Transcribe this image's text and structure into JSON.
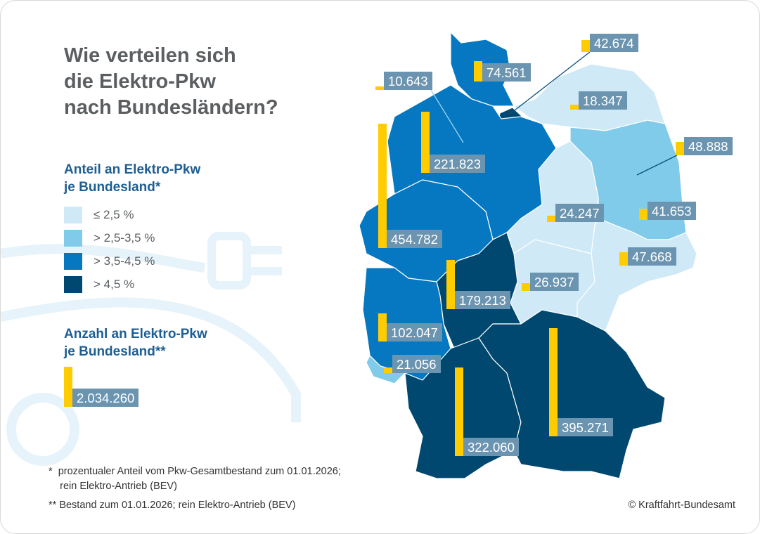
{
  "title": "Wie verteilen sich\ndie Elektro-Pkw\nnach Bundesländern?",
  "legend_share": {
    "heading": "Anteil an Elektro-Pkw\nje Bundesland*",
    "items": [
      {
        "label": "≤ 2,5 %",
        "color": "#cfe9f6"
      },
      {
        "label": "> 2,5-3,5 %",
        "color": "#80cbea"
      },
      {
        "label": "> 3,5-4,5 %",
        "color": "#0578c1"
      },
      {
        "label": "> 4,5 %",
        "color": "#00486f"
      }
    ]
  },
  "legend_count": {
    "heading": "Anzahl an Elektro-Pkw\nje Bundesland**",
    "example_value": "2.034.260"
  },
  "footnotes": {
    "f1": "*  prozentualer Anteil vom Pkw-Gesamtbestand zum 01.01.2026;\n    rein Elektro-Antrieb (BEV)",
    "f2": "** Bestand zum 01.01.2026; rein Elektro-Antrieb (BEV)"
  },
  "copyright": "© Kraftfahrt-Bundesamt",
  "colors": {
    "bar": "#ffcc00",
    "label_bg": "#6b94b0"
  },
  "chart_data": {
    "type": "choropleth-bar-map",
    "title": "Wie verteilen sich die Elektro-Pkw nach Bundesländern?",
    "states": [
      {
        "id": "SH",
        "name": "Schleswig-Holstein",
        "count": 74561,
        "label": "74.561",
        "share_class": "> 3,5-4,5 %"
      },
      {
        "id": "HH",
        "name": "Hamburg",
        "count": 42674,
        "label": "42.674",
        "share_class": "> 4,5 %"
      },
      {
        "id": "HB",
        "name": "Bremen",
        "count": 10643,
        "label": "10.643",
        "share_class": "> 3,5-4,5 %"
      },
      {
        "id": "MV",
        "name": "Mecklenburg-Vorpommern",
        "count": 18347,
        "label": "18.347",
        "share_class": "≤ 2,5 %"
      },
      {
        "id": "NI",
        "name": "Niedersachsen",
        "count": 221823,
        "label": "221.823",
        "share_class": "> 3,5-4,5 %"
      },
      {
        "id": "NW",
        "name": "Nordrhein-Westfalen",
        "count": 454782,
        "label": "454.782",
        "share_class": "> 3,5-4,5 %"
      },
      {
        "id": "BE",
        "name": "Berlin",
        "count": 48888,
        "label": "48.888",
        "share_class": "> 3,5-4,5 %"
      },
      {
        "id": "BB",
        "name": "Brandenburg",
        "count": 41653,
        "label": "41.653",
        "share_class": "> 2,5-3,5 %"
      },
      {
        "id": "ST",
        "name": "Sachsen-Anhalt",
        "count": 24247,
        "label": "24.247",
        "share_class": "≤ 2,5 %"
      },
      {
        "id": "SN",
        "name": "Sachsen",
        "count": 47668,
        "label": "47.668",
        "share_class": "≤ 2,5 %"
      },
      {
        "id": "TH",
        "name": "Thüringen",
        "count": 26937,
        "label": "26.937",
        "share_class": "≤ 2,5 %"
      },
      {
        "id": "HE",
        "name": "Hessen",
        "count": 179213,
        "label": "179.213",
        "share_class": "> 4,5 %"
      },
      {
        "id": "RP",
        "name": "Rheinland-Pfalz",
        "count": 102047,
        "label": "102.047",
        "share_class": "> 3,5-4,5 %"
      },
      {
        "id": "SL",
        "name": "Saarland",
        "count": 21056,
        "label": "21.056",
        "share_class": "> 2,5-3,5 %"
      },
      {
        "id": "BW",
        "name": "Baden-Württemberg",
        "count": 322060,
        "label": "322.060",
        "share_class": "> 4,5 %"
      },
      {
        "id": "BY",
        "name": "Bayern",
        "count": 395271,
        "label": "395.271",
        "share_class": "> 4,5 %"
      }
    ]
  }
}
